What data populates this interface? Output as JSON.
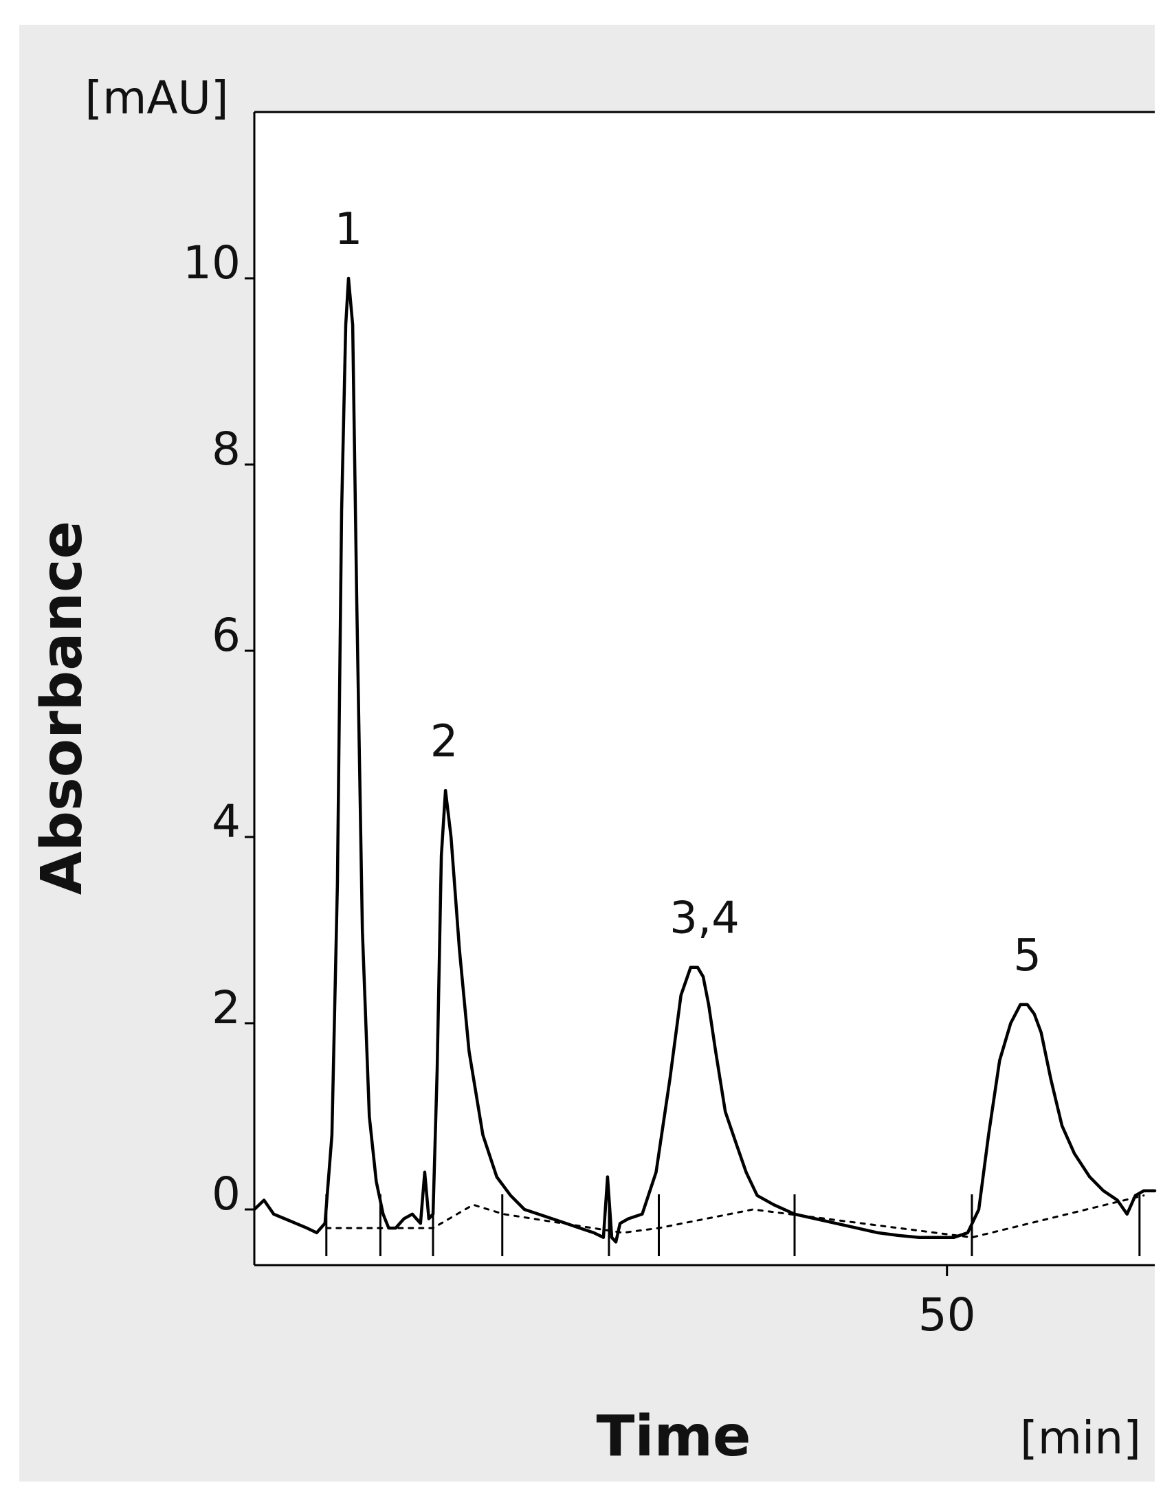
{
  "chart_data": {
    "type": "line",
    "title": "",
    "xlabel": "Time",
    "xunit": "[min]",
    "ylabel": "Absorbance",
    "yunit": "[mAU]",
    "xlim": [
      0,
      65
    ],
    "ylim": [
      -0.5,
      12
    ],
    "yticks": [
      0,
      2,
      4,
      6,
      8,
      10
    ],
    "xticks": [
      50
    ],
    "grid": false,
    "legend": "none",
    "colors": {
      "trace": "#000000",
      "baseline": "#000000",
      "panel": "#ebebeb",
      "plot_bg": "#ffffff"
    },
    "peaks": [
      {
        "label": "1",
        "x": 6.8,
        "y": 10.0
      },
      {
        "label": "2",
        "x": 13.7,
        "y": 4.5
      },
      {
        "label": "3,4",
        "x": 32.5,
        "y": 2.6
      },
      {
        "label": "5",
        "x": 55.8,
        "y": 2.2
      }
    ],
    "series": [
      {
        "style": "solid",
        "x": [
          0,
          0.7,
          1.4,
          2.2,
          3.0,
          3.8,
          4.5,
          5.1,
          5.6,
          6.0,
          6.3,
          6.6,
          6.8,
          7.1,
          7.4,
          7.8,
          8.3,
          8.8,
          9.3,
          9.7,
          10.2,
          10.8,
          11.4,
          12.0,
          12.3,
          12.6,
          12.9,
          13.2,
          13.5,
          13.8,
          14.2,
          14.8,
          15.5,
          16.5,
          17.5,
          18.5,
          19.5,
          20.5,
          21.5,
          22.5,
          23.5,
          24.5,
          25.2,
          25.5,
          25.8,
          26.1,
          26.4,
          27.0,
          28.0,
          29.0,
          30.0,
          30.8,
          31.5,
          32.0,
          32.4,
          32.8,
          33.3,
          34.0,
          34.8,
          35.5,
          36.3,
          37.5,
          39.0,
          40.5,
          42.0,
          43.5,
          45.0,
          46.5,
          48.0,
          49.5,
          50.5,
          51.5,
          52.3,
          53.0,
          53.8,
          54.6,
          55.3,
          55.8,
          56.3,
          56.8,
          57.5,
          58.3,
          59.2,
          60.3,
          61.3,
          62.3,
          63.0,
          63.6,
          64.2,
          65.0
        ],
        "y": [
          0.0,
          0.1,
          -0.05,
          -0.1,
          -0.15,
          -0.2,
          -0.25,
          -0.15,
          0.8,
          3.5,
          7.5,
          9.5,
          10.0,
          9.5,
          6.5,
          3.0,
          1.0,
          0.3,
          -0.05,
          -0.2,
          -0.2,
          -0.1,
          -0.05,
          -0.15,
          0.4,
          -0.1,
          -0.05,
          1.5,
          3.8,
          4.5,
          4.0,
          2.8,
          1.7,
          0.8,
          0.35,
          0.15,
          0.0,
          -0.05,
          -0.1,
          -0.15,
          -0.2,
          -0.25,
          -0.3,
          0.35,
          -0.3,
          -0.35,
          -0.15,
          -0.1,
          -0.05,
          0.4,
          1.4,
          2.3,
          2.6,
          2.6,
          2.5,
          2.2,
          1.7,
          1.05,
          0.7,
          0.4,
          0.15,
          0.05,
          -0.05,
          -0.1,
          -0.15,
          -0.2,
          -0.25,
          -0.28,
          -0.3,
          -0.3,
          -0.3,
          -0.25,
          0.0,
          0.8,
          1.6,
          2.0,
          2.2,
          2.2,
          2.1,
          1.9,
          1.4,
          0.9,
          0.6,
          0.35,
          0.2,
          0.1,
          -0.05,
          0.15,
          0.2,
          0.2
        ]
      },
      {
        "style": "dotted",
        "x": [
          5.2,
          9.6,
          12.9,
          15.8,
          18.0,
          26.6,
          29.2,
          36.0,
          51.8,
          64.2
        ],
        "y": [
          -0.2,
          -0.2,
          -0.2,
          0.05,
          -0.05,
          -0.25,
          -0.2,
          0.0,
          -0.3,
          0.15
        ]
      }
    ],
    "peak_markers_x": [
      5.2,
      9.1,
      12.9,
      17.9,
      25.6,
      29.2,
      39.0,
      51.8,
      63.9
    ]
  }
}
